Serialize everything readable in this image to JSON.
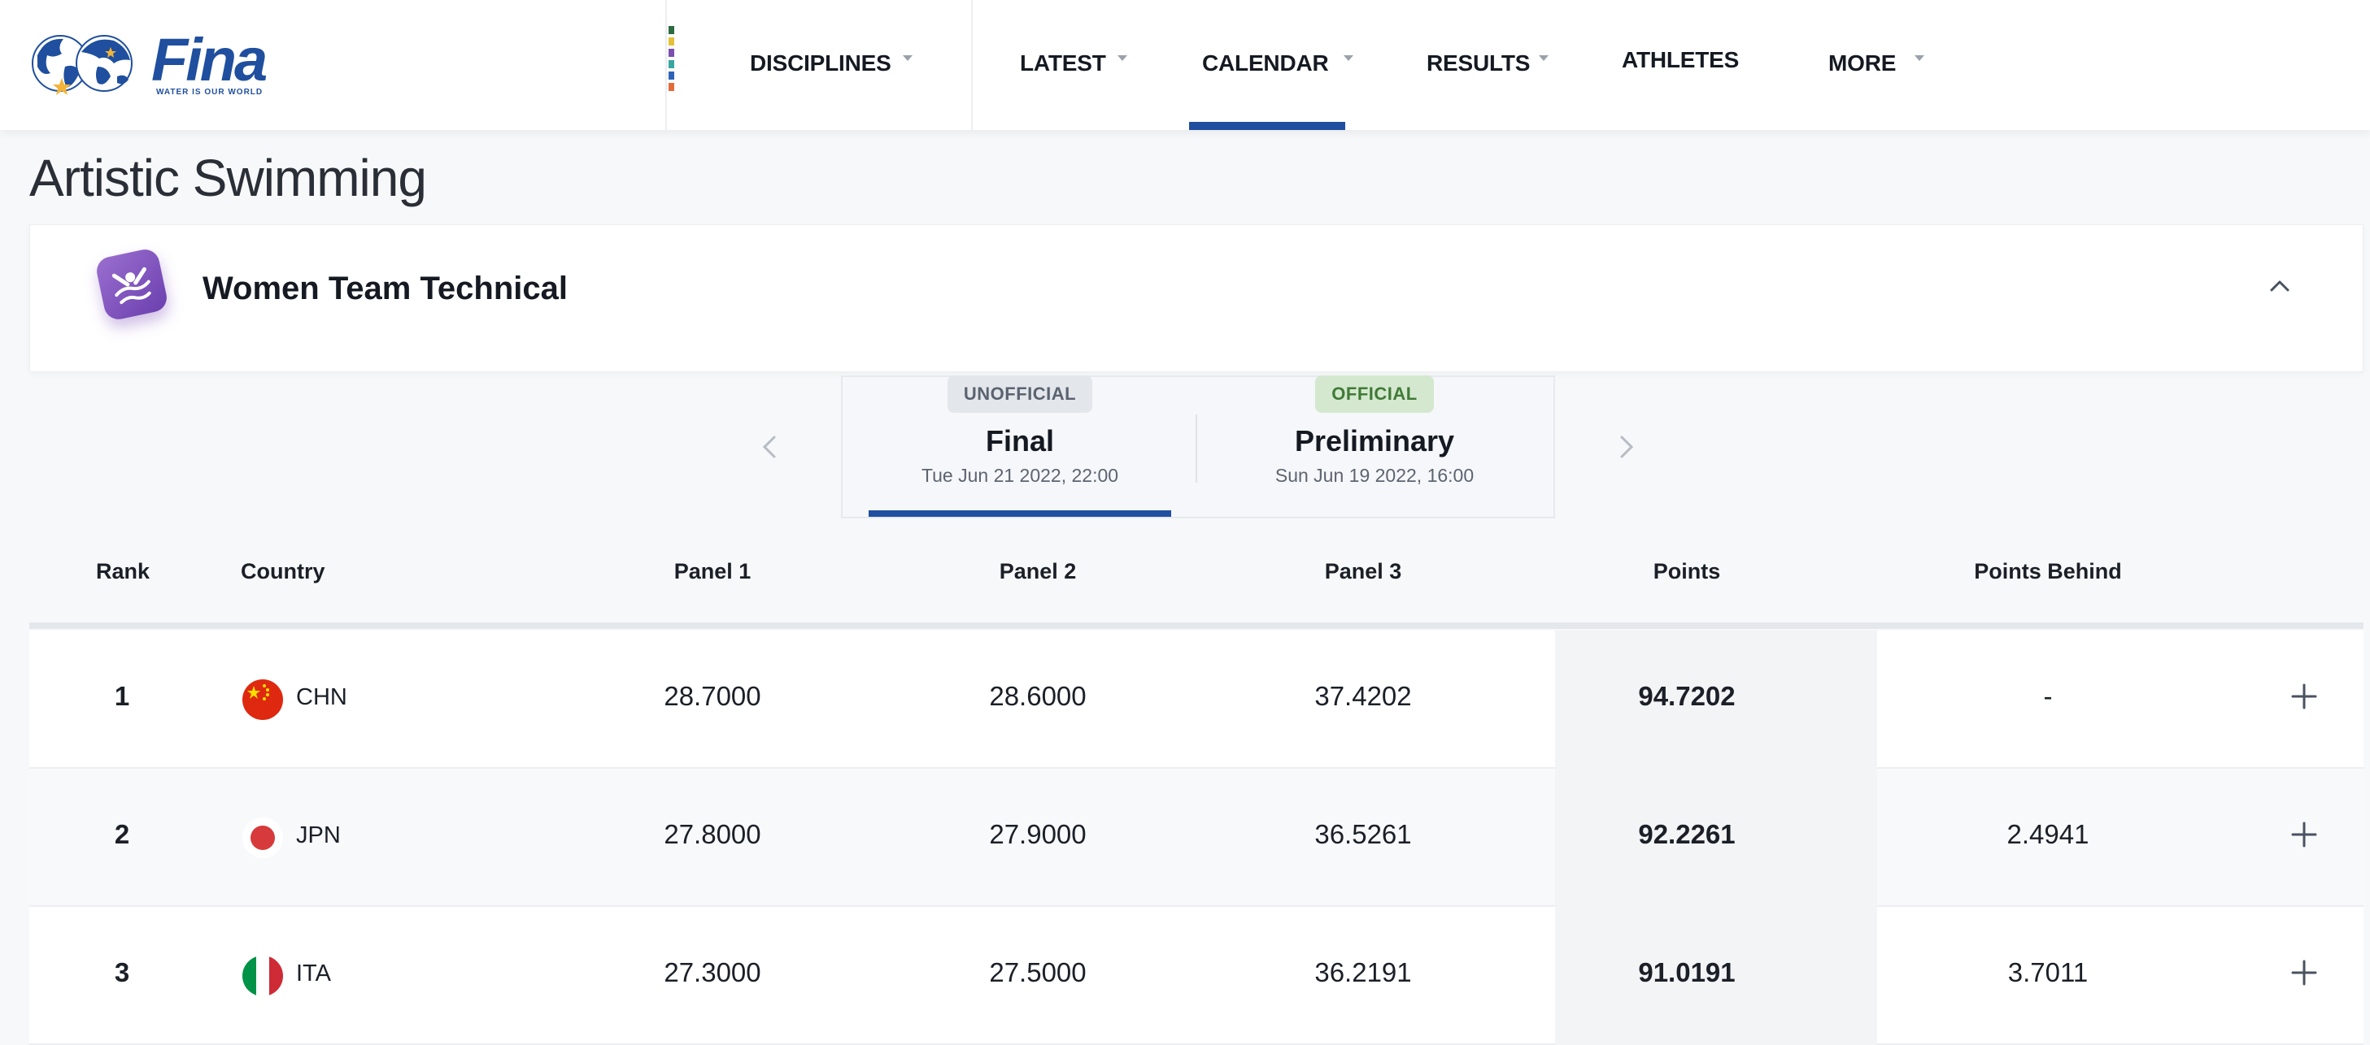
{
  "brand": {
    "name": "Fina",
    "tagline": "WATER IS OUR WORLD",
    "stripe_colors": [
      "#2e6a3f",
      "#e2c23a",
      "#7a4fb0",
      "#3aa6a0",
      "#2f63b8",
      "#e26b3a"
    ]
  },
  "nav": {
    "items": [
      {
        "label": "DISCIPLINES",
        "has_dropdown": true
      },
      {
        "label": "LATEST",
        "has_dropdown": true
      },
      {
        "label": "CALENDAR",
        "has_dropdown": true,
        "active": true
      },
      {
        "label": "RESULTS",
        "has_dropdown": true
      },
      {
        "label": "ATHLETES",
        "has_dropdown": false
      },
      {
        "label": "MORE",
        "has_dropdown": true
      }
    ]
  },
  "page": {
    "title": "Artistic Swimming"
  },
  "event": {
    "name": "Women Team Technical",
    "icon": "artistic-swimming-icon"
  },
  "phases": [
    {
      "status": "UNOFFICIAL",
      "name": "Final",
      "date": "Tue Jun 21 2022, 22:00",
      "selected": true
    },
    {
      "status": "OFFICIAL",
      "name": "Preliminary",
      "date": "Sun Jun 19 2022, 16:00",
      "selected": false
    }
  ],
  "table": {
    "headers": {
      "rank": "Rank",
      "country": "Country",
      "panel1": "Panel 1",
      "panel2": "Panel 2",
      "panel3": "Panel 3",
      "points": "Points",
      "behind": "Points Behind"
    },
    "rows": [
      {
        "rank": "1",
        "country": "CHN",
        "panel1": "28.7000",
        "panel2": "28.6000",
        "panel3": "37.4202",
        "points": "94.7202",
        "behind": "-"
      },
      {
        "rank": "2",
        "country": "JPN",
        "panel1": "27.8000",
        "panel2": "27.9000",
        "panel3": "36.5261",
        "points": "92.2261",
        "behind": "2.4941"
      },
      {
        "rank": "3",
        "country": "ITA",
        "panel1": "27.3000",
        "panel2": "27.5000",
        "panel3": "36.2191",
        "points": "91.0191",
        "behind": "3.7011"
      }
    ]
  },
  "colors": {
    "brand_blue": "#1f4f9e",
    "official_green": "#3f7a36",
    "unofficial_gray": "#5b6370"
  }
}
